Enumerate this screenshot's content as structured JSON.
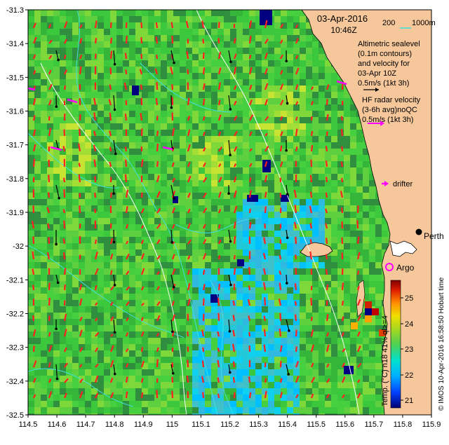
{
  "map": {
    "date": "03-Apr-2016",
    "time": "10:46Z",
    "isobath_labels": [
      "200",
      "1000m"
    ],
    "legend": {
      "altimetry_lines": [
        "Altimetric sealevel",
        "(0.1m contours)",
        "and velocity for",
        "03-Apr 10Z",
        "0.5m/s (1kt 3h)"
      ],
      "hf_radar_lines": [
        "HF radar velocity",
        "(3-6h avg)noQC",
        "0.5m/s (1kt 3h)"
      ],
      "drifter_label": "drifter",
      "argo_label": "Argo",
      "city_label": "Perth",
      "credit": "© IMOS 10-Apr-2016 16:58:50 Hobart time"
    },
    "x_ticks": [
      "114.5",
      "114.6",
      "114.7",
      "114.8",
      "114.9",
      "115",
      "115.1",
      "115.2",
      "115.3",
      "115.4",
      "115.5",
      "115.6",
      "115.7",
      "115.8",
      "115.9"
    ],
    "y_ticks": [
      "-31.3",
      "-31.4",
      "-31.5",
      "-31.6",
      "-31.7",
      "-31.8",
      "-31.9",
      "-32",
      "-32.1",
      "-32.2",
      "-32.3",
      "-32.4",
      "-32.5"
    ],
    "colorbar": {
      "label": "Temp. (°C) n18 41% ql>=4",
      "ticks": [
        "25",
        "24",
        "23",
        "22",
        "21"
      ],
      "colors": [
        "#000080",
        "#0000ff",
        "#0080ff",
        "#00c0ff",
        "#00e0e0",
        "#40d080",
        "#60c840",
        "#a0d020",
        "#e0e000",
        "#ffa000",
        "#ff4000",
        "#c00000",
        "#800000"
      ]
    },
    "colors": {
      "land": "#f5c79b",
      "radar_vector": "#ff2020",
      "hf_legend": "#ff00ff",
      "altimetry_vector": "#000000",
      "isobath": "#ffffff",
      "contour": "#40e0e0"
    }
  }
}
